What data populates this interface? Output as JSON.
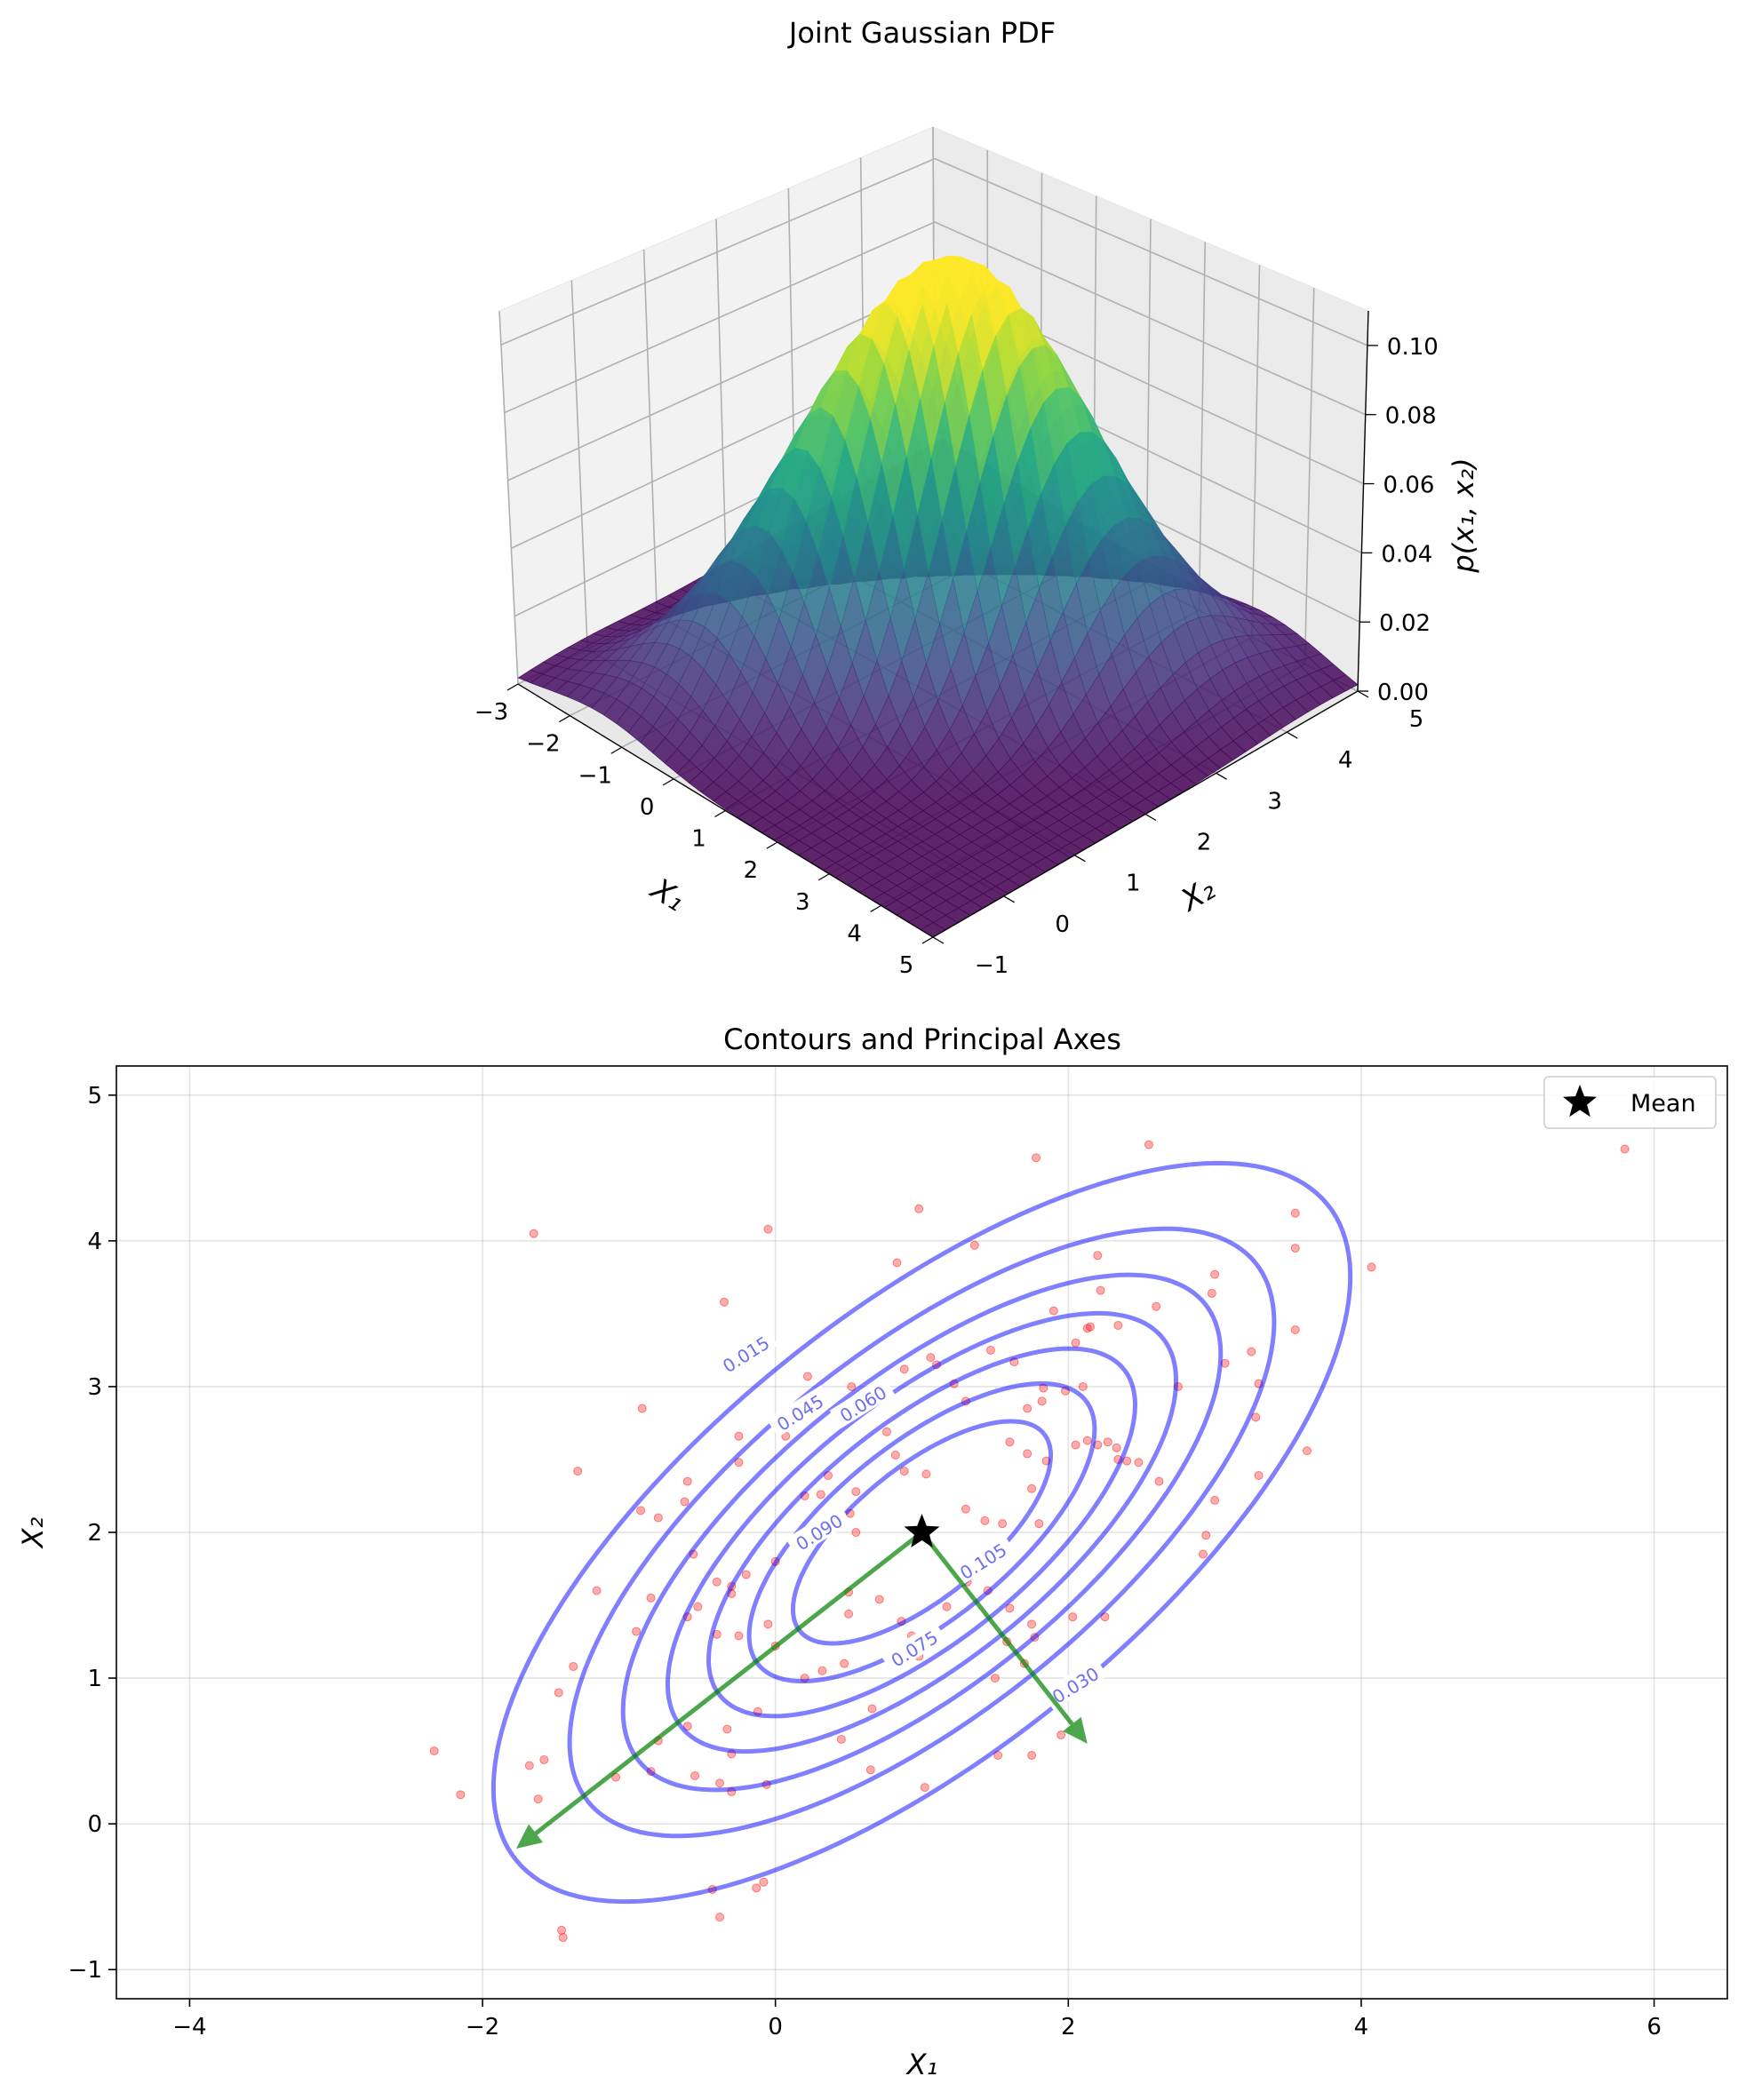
{
  "chart_data": [
    {
      "type": "surface3d",
      "title": "Joint Gaussian PDF",
      "xlabel": "X₁",
      "ylabel": "X₂",
      "zlabel": "p(x₁, x₂)",
      "xlim": [
        -3,
        5
      ],
      "ylim": [
        -1,
        5
      ],
      "zlim": [
        0,
        0.11
      ],
      "x_ticks": [
        "−3",
        "−2",
        "−1",
        "0",
        "1",
        "2",
        "3",
        "4",
        "5"
      ],
      "y_ticks": [
        "−1",
        "0",
        "1",
        "2",
        "3",
        "4",
        "5"
      ],
      "z_ticks": [
        "0.00",
        "0.02",
        "0.04",
        "0.06",
        "0.08",
        "0.10"
      ],
      "colormap": "viridis",
      "mean": [
        1,
        2
      ],
      "covariance": [
        [
          2,
          1.2
        ],
        [
          1.2,
          1.5
        ]
      ],
      "peak_value": 0.113
    },
    {
      "type": "contour",
      "title": "Contours and Principal Axes",
      "xlabel": "X₁",
      "ylabel": "X₂",
      "xlim": [
        -4.5,
        6.5
      ],
      "ylim": [
        -1.2,
        5.2
      ],
      "x_ticks": [
        "−4",
        "−2",
        "0",
        "2",
        "4",
        "6"
      ],
      "y_ticks": [
        "−1",
        "0",
        "1",
        "2",
        "3",
        "4",
        "5"
      ],
      "grid": true,
      "mean": [
        1,
        2
      ],
      "covariance": [
        [
          2,
          1.2
        ],
        [
          1.2,
          1.5
        ]
      ],
      "contour_levels": [
        0.015,
        0.03,
        0.045,
        0.06,
        0.075,
        0.09,
        0.105
      ],
      "contour_labels": [
        {
          "text": "0.015",
          "x": -0.2,
          "y": 3.22
        },
        {
          "text": "0.030",
          "x": 2.05,
          "y": 0.95
        },
        {
          "text": "0.045",
          "x": 0.17,
          "y": 2.82
        },
        {
          "text": "0.060",
          "x": 0.6,
          "y": 2.88
        },
        {
          "text": "0.075",
          "x": 0.95,
          "y": 1.2
        },
        {
          "text": "0.090",
          "x": 0.3,
          "y": 2.0
        },
        {
          "text": "0.105",
          "x": 1.42,
          "y": 1.8
        }
      ],
      "contour_color": "#0000ff",
      "principal_axes": [
        {
          "from": [
            1,
            2
          ],
          "to": [
            -1.77,
            -0.17
          ]
        },
        {
          "from": [
            1,
            2
          ],
          "to": [
            2.13,
            0.55
          ]
        }
      ],
      "axes_color": "#008000",
      "legend": {
        "entries": [
          "Mean"
        ],
        "location": "upper right"
      },
      "samples_color": "#ff0000",
      "samples": [
        [
          -1.65,
          4.05
        ],
        [
          -0.05,
          4.08
        ],
        [
          0.98,
          4.22
        ],
        [
          0.83,
          3.85
        ],
        [
          1.36,
          3.97
        ],
        [
          1.78,
          4.57
        ],
        [
          2.55,
          4.66
        ],
        [
          3.55,
          4.19
        ],
        [
          5.8,
          4.63
        ],
        [
          4.07,
          3.82
        ],
        [
          -0.35,
          3.58
        ],
        [
          0.22,
          3.07
        ],
        [
          0.52,
          3.0
        ],
        [
          0.88,
          3.12
        ],
        [
          1.06,
          3.2
        ],
        [
          1.1,
          3.15
        ],
        [
          1.22,
          3.02
        ],
        [
          1.47,
          3.25
        ],
        [
          1.63,
          3.17
        ],
        [
          1.9,
          3.52
        ],
        [
          2.05,
          3.3
        ],
        [
          2.15,
          3.41
        ],
        [
          2.13,
          3.4
        ],
        [
          2.2,
          3.9
        ],
        [
          2.22,
          3.66
        ],
        [
          2.34,
          3.42
        ],
        [
          2.1,
          3.0
        ],
        [
          2.6,
          3.55
        ],
        [
          2.98,
          3.64
        ],
        [
          3.0,
          3.77
        ],
        [
          3.3,
          3.02
        ],
        [
          3.55,
          3.95
        ],
        [
          3.55,
          3.39
        ],
        [
          3.25,
          3.24
        ],
        [
          3.07,
          3.16
        ],
        [
          2.75,
          3.0
        ],
        [
          3.28,
          2.79
        ],
        [
          3.63,
          2.56
        ],
        [
          3.3,
          2.39
        ],
        [
          3.0,
          2.22
        ],
        [
          2.94,
          1.98
        ],
        [
          2.92,
          1.85
        ],
        [
          2.62,
          2.35
        ],
        [
          2.48,
          2.48
        ],
        [
          2.4,
          2.49
        ],
        [
          2.34,
          2.5
        ],
        [
          2.2,
          2.6
        ],
        [
          2.13,
          2.63
        ],
        [
          2.27,
          2.62
        ],
        [
          2.33,
          2.58
        ],
        [
          2.05,
          2.6
        ],
        [
          1.98,
          2.97
        ],
        [
          1.83,
          2.99
        ],
        [
          1.72,
          2.85
        ],
        [
          1.6,
          2.62
        ],
        [
          1.72,
          2.54
        ],
        [
          1.82,
          2.9
        ],
        [
          1.75,
          2.3
        ],
        [
          1.85,
          2.49
        ],
        [
          1.8,
          2.06
        ],
        [
          1.55,
          2.06
        ],
        [
          1.43,
          2.08
        ],
        [
          1.3,
          2.9
        ],
        [
          1.3,
          2.16
        ],
        [
          1.03,
          2.4
        ],
        [
          0.88,
          2.42
        ],
        [
          0.76,
          2.69
        ],
        [
          0.82,
          2.53
        ],
        [
          0.55,
          2.28
        ],
        [
          0.55,
          2.0
        ],
        [
          0.51,
          2.13
        ],
        [
          0.36,
          2.39
        ],
        [
          0.31,
          2.26
        ],
        [
          0.2,
          2.25
        ],
        [
          0.27,
          2.93
        ],
        [
          0.07,
          2.66
        ],
        [
          -0.25,
          2.66
        ],
        [
          -0.6,
          2.35
        ],
        [
          -0.62,
          2.21
        ],
        [
          -0.91,
          2.85
        ],
        [
          -0.92,
          2.15
        ],
        [
          -1.35,
          2.42
        ],
        [
          -0.25,
          2.48
        ],
        [
          -0.4,
          1.66
        ],
        [
          -0.53,
          1.49
        ],
        [
          -0.6,
          1.42
        ],
        [
          -0.3,
          1.63
        ],
        [
          -0.2,
          1.71
        ],
        [
          -0.3,
          1.58
        ],
        [
          -0.56,
          1.85
        ],
        [
          -0.85,
          1.55
        ],
        [
          -0.95,
          1.32
        ],
        [
          -1.22,
          1.6
        ],
        [
          -1.38,
          1.08
        ],
        [
          -1.48,
          0.9
        ],
        [
          -1.58,
          0.44
        ],
        [
          -1.68,
          0.4
        ],
        [
          -1.62,
          0.17
        ],
        [
          -2.33,
          0.5
        ],
        [
          -2.15,
          0.2
        ],
        [
          -0.4,
          1.3
        ],
        [
          -0.25,
          1.29
        ],
        [
          0.0,
          1.22
        ],
        [
          -0.05,
          1.37
        ],
        [
          0.5,
          1.44
        ],
        [
          0.5,
          1.59
        ],
        [
          0.47,
          1.1
        ],
        [
          0.71,
          1.54
        ],
        [
          0.86,
          1.39
        ],
        [
          0.93,
          1.29
        ],
        [
          0.98,
          1.15
        ],
        [
          1.17,
          1.49
        ],
        [
          1.31,
          1.66
        ],
        [
          1.45,
          1.6
        ],
        [
          1.6,
          1.48
        ],
        [
          1.77,
          1.28
        ],
        [
          1.58,
          1.25
        ],
        [
          1.75,
          1.37
        ],
        [
          2.03,
          1.42
        ],
        [
          2.25,
          1.42
        ],
        [
          0.32,
          1.05
        ],
        [
          0.66,
          0.79
        ],
        [
          0.45,
          0.58
        ],
        [
          -0.12,
          0.77
        ],
        [
          -0.33,
          0.65
        ],
        [
          -0.3,
          0.48
        ],
        [
          -0.6,
          0.67
        ],
        [
          -0.8,
          0.57
        ],
        [
          -0.85,
          0.36
        ],
        [
          -0.55,
          0.33
        ],
        [
          -0.38,
          0.28
        ],
        [
          -0.3,
          0.22
        ],
        [
          0.65,
          0.37
        ],
        [
          1.02,
          0.25
        ],
        [
          1.52,
          0.47
        ],
        [
          1.75,
          0.47
        ],
        [
          1.95,
          0.61
        ],
        [
          -0.06,
          0.27
        ],
        [
          -1.46,
          -0.73
        ],
        [
          -1.45,
          -0.78
        ],
        [
          -0.43,
          -0.45
        ],
        [
          -0.38,
          -0.64
        ],
        [
          -0.13,
          -0.44
        ],
        [
          -0.08,
          -0.4
        ],
        [
          1.5,
          1.0
        ],
        [
          1.7,
          1.1
        ],
        [
          0.2,
          1.0
        ],
        [
          -1.09,
          0.32
        ],
        [
          -0.8,
          2.1
        ],
        [
          0.0,
          1.8
        ]
      ]
    }
  ]
}
